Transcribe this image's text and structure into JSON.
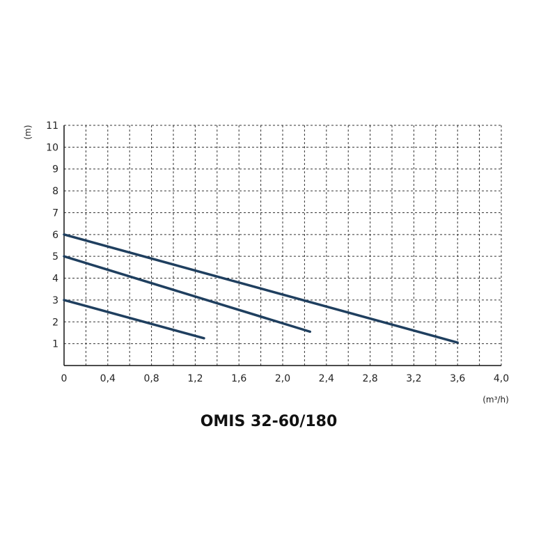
{
  "chart_data": {
    "type": "line",
    "title": "OMIS 32-60/180",
    "xlabel": "(m³/h)",
    "ylabel": "(m)",
    "xlim": [
      0,
      4.0
    ],
    "ylim": [
      0,
      11
    ],
    "x_ticks": [
      "0",
      "0,4",
      "0,8",
      "1,2",
      "1,6",
      "2,0",
      "2,4",
      "2,8",
      "3,2",
      "3,6",
      "4,0"
    ],
    "y_ticks": [
      "1",
      "2",
      "3",
      "4",
      "5",
      "6",
      "7",
      "8",
      "9",
      "10",
      "11"
    ],
    "grid": true,
    "series": [
      {
        "points": [
          [
            0,
            6.0
          ],
          [
            3.6,
            1.05
          ]
        ]
      },
      {
        "points": [
          [
            0,
            5.0
          ],
          [
            2.25,
            1.55
          ]
        ]
      },
      {
        "points": [
          [
            0,
            3.0
          ],
          [
            1.28,
            1.25
          ]
        ]
      }
    ],
    "colors": {
      "line": "#1f3f5f",
      "grid": "#333333",
      "text": "#222222"
    }
  }
}
